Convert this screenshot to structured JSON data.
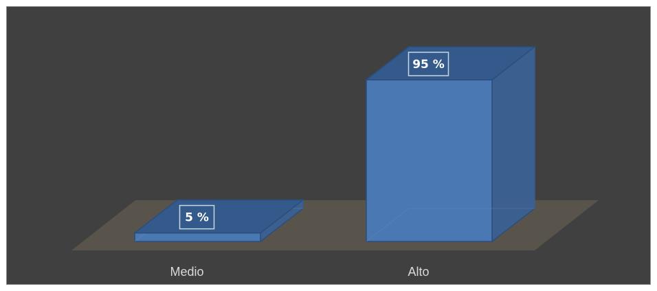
{
  "chart_data": {
    "type": "bar",
    "style": "3d-column",
    "categories": [
      "Medio",
      "Alto"
    ],
    "values": [
      5,
      95
    ],
    "data_labels": [
      "5 %",
      "95 %"
    ],
    "ylim": [
      0,
      100
    ],
    "grid": false,
    "legend": "none",
    "colors": {
      "background": "#404040",
      "bar_front": "#4a78b2",
      "bar_top": "#335a8a",
      "bar_side": "#3b5f8e",
      "floor": "#5a544c",
      "tick_text": "#d9d9d9",
      "label_text": "#ffffff"
    }
  }
}
